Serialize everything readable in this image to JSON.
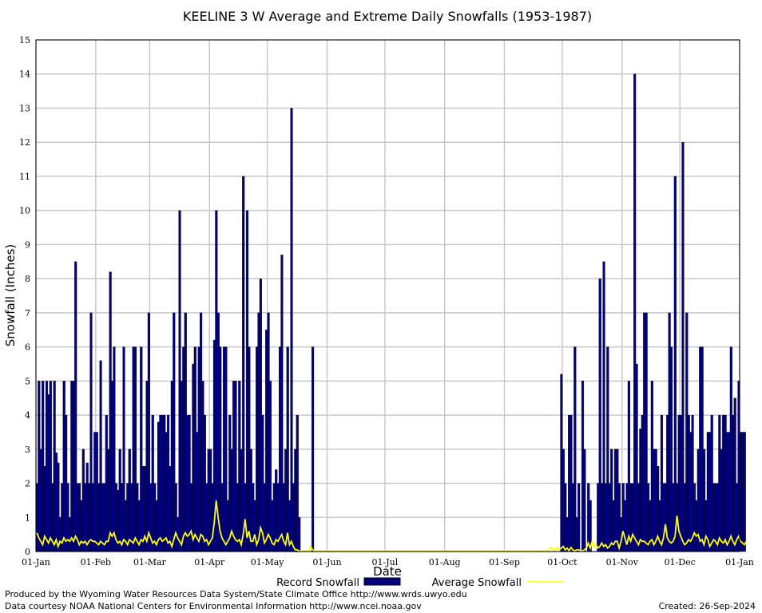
{
  "chart_data": {
    "type": "bar",
    "title": "KEELINE 3 W Average and Extreme Daily Snowfalls (1953-1987)",
    "xlabel": "Date",
    "ylabel": "Snowfall (Inches)",
    "ylim": [
      0,
      15
    ],
    "yticks": [
      "0",
      "1",
      "2",
      "3",
      "4",
      "5",
      "6",
      "7",
      "8",
      "9",
      "10",
      "11",
      "12",
      "13",
      "14",
      "15"
    ],
    "xticks": [
      "01-Jan",
      "01-Feb",
      "01-Mar",
      "01-Apr",
      "01-May",
      "01-Jun",
      "01-Jul",
      "01-Aug",
      "01-Sep",
      "01-Oct",
      "01-Nov",
      "01-Dec",
      "01-Jan"
    ],
    "xtick_days": [
      0,
      31,
      59,
      90,
      120,
      151,
      181,
      212,
      243,
      273,
      304,
      334,
      365
    ],
    "grid": true,
    "legend": "bottom",
    "series": [
      {
        "name": "Record Snowfall",
        "color": "#000080",
        "values": [
          2.0,
          5.0,
          3.0,
          5.0,
          2.5,
          5.0,
          4.6,
          5.0,
          2.0,
          5.0,
          2.9,
          2.6,
          1.0,
          2.0,
          5.0,
          4.0,
          2.0,
          1.0,
          5.0,
          5.0,
          8.5,
          2.0,
          2.0,
          1.5,
          3.0,
          2.0,
          2.6,
          2.0,
          7.0,
          2.0,
          3.5,
          3.5,
          2.0,
          5.6,
          2.0,
          2.0,
          4.0,
          3.0,
          8.2,
          5.0,
          6.0,
          2.0,
          1.8,
          3.0,
          2.0,
          6.0,
          1.5,
          2.0,
          3.0,
          2.0,
          6.0,
          6.0,
          2.0,
          1.5,
          6.0,
          2.5,
          2.5,
          5.0,
          7.0,
          2.0,
          4.0,
          2.0,
          1.5,
          3.8,
          4.0,
          4.0,
          4.0,
          3.5,
          4.0,
          2.5,
          5.0,
          7.0,
          2.0,
          1.0,
          10.0,
          5.0,
          6.0,
          7.0,
          4.0,
          4.0,
          2.0,
          5.5,
          6.0,
          3.5,
          6.0,
          7.0,
          5.0,
          4.0,
          2.0,
          3.0,
          3.0,
          2.0,
          6.2,
          10.0,
          7.0,
          6.0,
          2.0,
          6.0,
          6.0,
          1.5,
          4.0,
          3.0,
          5.0,
          5.0,
          2.0,
          5.0,
          3.0,
          11.0,
          2.0,
          10.0,
          6.0,
          3.0,
          2.0,
          1.5,
          6.0,
          7.0,
          8.0,
          4.0,
          2.0,
          6.5,
          7.0,
          5.0,
          1.5,
          2.0,
          2.4,
          2.0,
          6.0,
          8.7,
          2.0,
          3.0,
          6.0,
          1.5,
          13.0,
          2.0,
          3.0,
          4.0,
          1.0,
          0,
          0,
          0,
          0,
          0,
          0,
          6.0,
          0,
          0,
          0,
          0,
          0,
          0,
          0,
          0,
          0,
          0,
          0,
          0,
          0,
          0,
          0,
          0,
          0,
          0,
          0,
          0,
          0,
          0,
          0,
          0,
          0,
          0,
          0,
          0,
          0,
          0,
          0,
          0,
          0,
          0,
          0,
          0,
          0,
          0,
          0,
          0,
          0,
          0,
          0,
          0,
          0,
          0,
          0,
          0,
          0,
          0,
          0,
          0,
          0,
          0,
          0,
          0,
          0,
          0,
          0,
          0,
          0,
          0,
          0,
          0,
          0,
          0,
          0,
          0,
          0,
          0,
          0,
          0,
          0,
          0,
          0,
          0,
          0,
          0,
          0,
          0,
          0,
          0,
          0,
          0,
          0,
          0,
          0,
          0,
          0,
          0,
          0,
          0,
          0,
          0,
          0,
          0,
          0,
          0,
          0,
          0,
          0,
          0,
          0,
          0,
          0,
          0,
          0,
          0,
          0,
          0,
          0,
          0,
          0,
          0,
          0,
          0,
          0,
          0,
          0,
          0,
          0,
          0,
          0,
          0,
          0,
          0,
          0,
          0,
          5.2,
          3.0,
          2.0,
          1.0,
          4.0,
          4.0,
          2.0,
          6.0,
          1.0,
          2.0,
          0,
          5.0,
          3.0,
          0,
          2.0,
          1.5,
          0,
          0,
          0,
          2.0,
          8.0,
          2.0,
          8.5,
          2.0,
          6.0,
          2.0,
          3.0,
          1.5,
          3.0,
          3.0,
          2.0,
          1.0,
          2.0,
          1.5,
          2.0,
          5.0,
          2.0,
          2.0,
          14.0,
          5.5,
          2.0,
          3.6,
          4.0,
          7.0,
          7.0,
          2.0,
          1.5,
          5.0,
          3.0,
          3.0,
          2.5,
          1.5,
          4.0,
          2.0,
          2.0,
          4.0,
          7.0,
          6.0,
          2.0,
          11.0,
          2.0,
          4.0,
          4.0,
          12.0,
          2.0,
          7.0,
          4.0,
          3.5,
          4.0,
          2.0,
          1.5,
          3.0,
          6.0,
          6.0,
          3.0,
          1.5,
          3.5,
          3.5,
          4.0,
          2.0,
          2.0,
          2.0,
          4.0,
          3.0,
          4.0,
          4.0,
          3.5,
          3.5,
          6.0,
          4.0,
          4.5,
          2.0,
          5.0,
          3.5,
          3.5,
          3.5
        ]
      },
      {
        "name": "Average Snowfall",
        "color": "#ffff00",
        "values": [
          0.55,
          0.4,
          0.3,
          0.2,
          0.45,
          0.35,
          0.25,
          0.4,
          0.3,
          0.2,
          0.35,
          0.15,
          0.3,
          0.25,
          0.4,
          0.3,
          0.35,
          0.3,
          0.4,
          0.3,
          0.45,
          0.35,
          0.2,
          0.3,
          0.25,
          0.3,
          0.2,
          0.3,
          0.35,
          0.3,
          0.3,
          0.25,
          0.2,
          0.3,
          0.25,
          0.2,
          0.3,
          0.3,
          0.55,
          0.45,
          0.55,
          0.35,
          0.25,
          0.3,
          0.2,
          0.35,
          0.3,
          0.2,
          0.35,
          0.3,
          0.25,
          0.4,
          0.3,
          0.2,
          0.35,
          0.3,
          0.45,
          0.3,
          0.55,
          0.4,
          0.25,
          0.3,
          0.2,
          0.35,
          0.4,
          0.3,
          0.35,
          0.4,
          0.25,
          0.3,
          0.15,
          0.35,
          0.55,
          0.4,
          0.3,
          0.2,
          0.45,
          0.55,
          0.45,
          0.5,
          0.6,
          0.35,
          0.5,
          0.4,
          0.3,
          0.5,
          0.45,
          0.3,
          0.35,
          0.2,
          0.3,
          0.4,
          0.85,
          1.5,
          1.0,
          0.6,
          0.4,
          0.3,
          0.2,
          0.3,
          0.4,
          0.6,
          0.45,
          0.35,
          0.3,
          0.35,
          0.2,
          0.5,
          0.95,
          0.4,
          0.6,
          0.3,
          0.3,
          0.5,
          0.2,
          0.35,
          0.7,
          0.55,
          0.25,
          0.35,
          0.5,
          0.4,
          0.25,
          0.2,
          0.35,
          0.3,
          0.4,
          0.5,
          0.3,
          0.2,
          0.55,
          0.2,
          0.3,
          0.15,
          0.05,
          0.05,
          0.02,
          0.02,
          0.02,
          0.02,
          0.02,
          0.02,
          0.15,
          0.05,
          0.02,
          0.02,
          0.02,
          0.02,
          0.02,
          0.02,
          0.02,
          0.02,
          0.02,
          0.02,
          0.02,
          0.02,
          0.02,
          0.02,
          0.02,
          0.02,
          0.02,
          0.02,
          0.02,
          0.02,
          0.02,
          0.02,
          0.02,
          0.02,
          0.02,
          0.02,
          0.02,
          0.02,
          0.02,
          0.02,
          0.02,
          0.02,
          0.02,
          0.02,
          0.02,
          0.02,
          0.02,
          0.02,
          0.02,
          0.02,
          0.02,
          0.02,
          0.02,
          0.02,
          0.02,
          0.02,
          0.02,
          0.02,
          0.02,
          0.02,
          0.02,
          0.02,
          0.02,
          0.02,
          0.02,
          0.02,
          0.02,
          0.02,
          0.02,
          0.02,
          0.02,
          0.02,
          0.02,
          0.02,
          0.02,
          0.02,
          0.02,
          0.02,
          0.02,
          0.02,
          0.02,
          0.02,
          0.02,
          0.02,
          0.02,
          0.02,
          0.02,
          0.02,
          0.02,
          0.02,
          0.02,
          0.02,
          0.02,
          0.02,
          0.02,
          0.02,
          0.02,
          0.02,
          0.02,
          0.02,
          0.02,
          0.02,
          0.02,
          0.02,
          0.02,
          0.02,
          0.02,
          0.02,
          0.02,
          0.02,
          0.02,
          0.02,
          0.02,
          0.02,
          0.02,
          0.02,
          0.02,
          0.02,
          0.02,
          0.02,
          0.02,
          0.02,
          0.02,
          0.02,
          0.02,
          0.02,
          0.02,
          0.02,
          0.02,
          0.02,
          0.02,
          0.02,
          0.1,
          0.12,
          0.05,
          0.05,
          0.12,
          0.05,
          0.1,
          0.15,
          0.05,
          0.1,
          0.02,
          0.12,
          0.05,
          0.02,
          0.05,
          0.05,
          0.02,
          0.02,
          0.05,
          0.1,
          0.25,
          0.1,
          0.3,
          0.15,
          0.2,
          0.1,
          0.15,
          0.25,
          0.15,
          0.2,
          0.1,
          0.15,
          0.25,
          0.2,
          0.3,
          0.3,
          0.1,
          0.3,
          0.6,
          0.4,
          0.2,
          0.45,
          0.3,
          0.5,
          0.4,
          0.3,
          0.2,
          0.35,
          0.3,
          0.3,
          0.25,
          0.2,
          0.3,
          0.35,
          0.2,
          0.3,
          0.45,
          0.3,
          0.2,
          0.4,
          0.8,
          0.4,
          0.3,
          0.25,
          0.3,
          0.45,
          1.05,
          0.6,
          0.45,
          0.3,
          0.2,
          0.25,
          0.35,
          0.3,
          0.4,
          0.55,
          0.45,
          0.5,
          0.3,
          0.35,
          0.2,
          0.45,
          0.35,
          0.15,
          0.25,
          0.35,
          0.3,
          0.2,
          0.4,
          0.3,
          0.25,
          0.35,
          0.2,
          0.3,
          0.45,
          0.3,
          0.2,
          0.35,
          0.45,
          0.3,
          0.25,
          0.2,
          0.3
        ]
      }
    ]
  },
  "footer": {
    "credit_line1": "Produced by the Wyoming Water Resources Data System/State Climate Office http://www.wrds.uwyo.edu",
    "credit_line2": "Data courtesy NOAA National Centers for Environmental Information http://www.ncei.noaa.gov",
    "created": "Created:  26-Sep-2024"
  }
}
